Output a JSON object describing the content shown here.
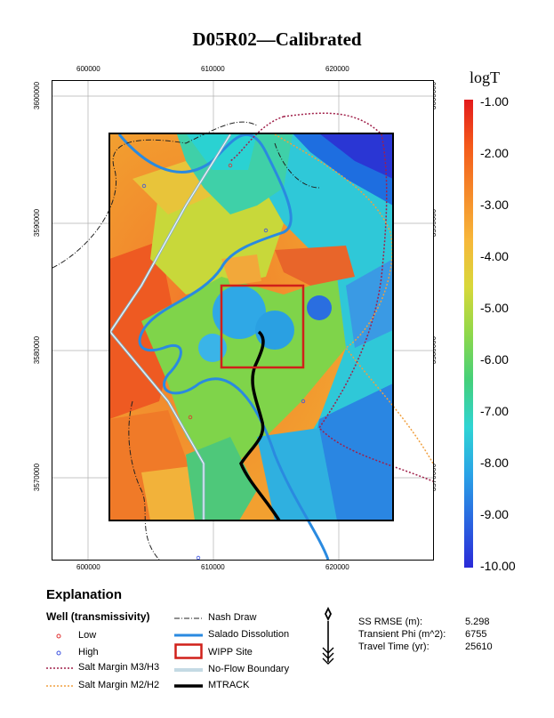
{
  "title": "D05R02—Calibrated",
  "map": {
    "x_ticks": [
      "600000",
      "610000",
      "620000"
    ],
    "y_ticks": [
      "3600000",
      "3590000",
      "3580000",
      "3570000"
    ]
  },
  "colorbar": {
    "title": "logT",
    "labels": [
      "-1.00",
      "-2.00",
      "-3.00",
      "-4.00",
      "-5.00",
      "-6.00",
      "-7.00",
      "-8.00",
      "-9.00",
      "-10.00"
    ],
    "colors": [
      "#e31a1c",
      "#f45a1a",
      "#f58a2a",
      "#f7b73a",
      "#d8d83a",
      "#8fd84a",
      "#44d07a",
      "#2fd4d4",
      "#2aa3e6",
      "#2a66e0",
      "#2a2ad8"
    ]
  },
  "legend": {
    "heading": "Explanation",
    "subheading": "Well (transmissivity)",
    "low": "Low",
    "high": "High",
    "salt_m3": "Salt Margin M3/H3",
    "salt_m2": "Salt Margin M2/H2",
    "nash_draw": "Nash Draw",
    "salado": "Salado Dissolution",
    "wipp": "WIPP Site",
    "no_flow": "No-Flow Boundary",
    "mtrack": "MTRACK"
  },
  "stats": {
    "rmse_label": "SS RMSE (m):",
    "rmse_value": "5.298",
    "phi_label": "Transient Phi (m^2):",
    "phi_value": "6755",
    "travel_label": "Travel Time (yr):",
    "travel_value": "25610"
  },
  "north_arrow_icon": "north-arrow-icon"
}
